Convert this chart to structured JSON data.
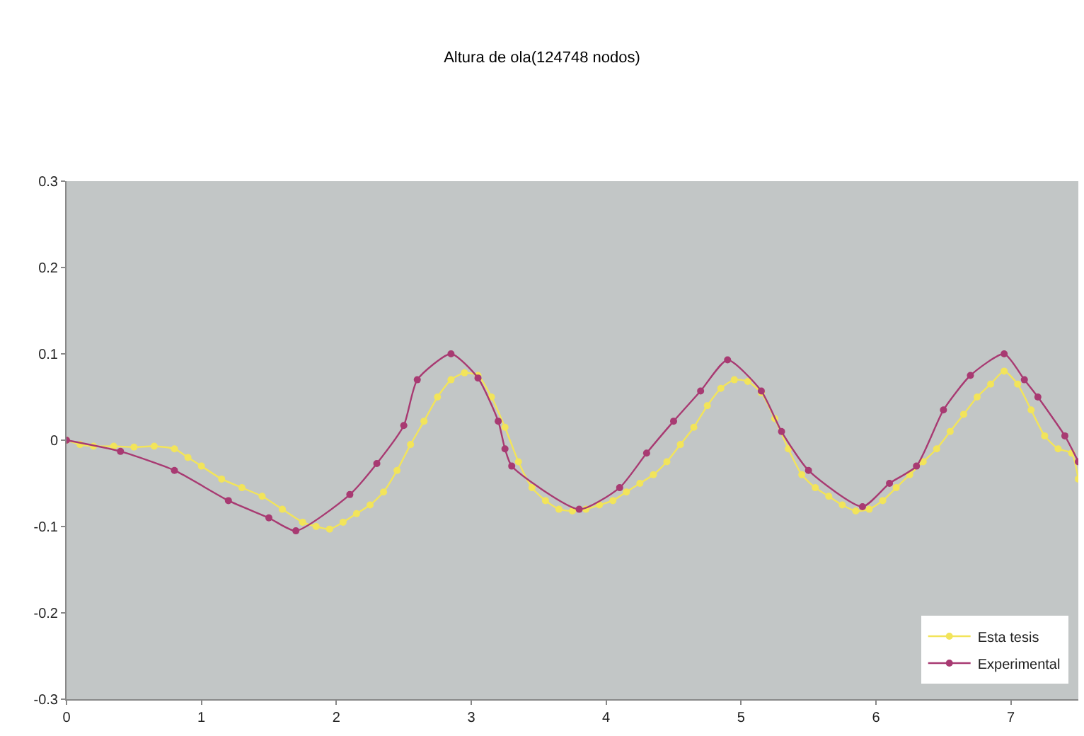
{
  "chart_data": {
    "type": "line",
    "title": "Altura de ola(124748 nodos)",
    "xlim": [
      0,
      7.5
    ],
    "xticks": [
      0,
      1,
      2,
      3,
      4,
      5,
      6,
      7
    ],
    "ylim": [
      -0.3,
      0.3
    ],
    "yticks": [
      -0.3,
      -0.2,
      -0.1,
      0,
      0.1,
      0.2,
      0.3
    ],
    "grid": false,
    "legend": "bottom right",
    "marker": "circle",
    "line_style": "solid",
    "series": [
      {
        "name": "Esta tesis",
        "color": "#f2e45a",
        "x": [
          0,
          0.1,
          0.2,
          0.35,
          0.5,
          0.65,
          0.8,
          0.9,
          1.0,
          1.15,
          1.3,
          1.45,
          1.6,
          1.75,
          1.85,
          1.95,
          2.05,
          2.15,
          2.25,
          2.35,
          2.45,
          2.55,
          2.65,
          2.75,
          2.85,
          2.95,
          3.05,
          3.15,
          3.25,
          3.35,
          3.45,
          3.55,
          3.65,
          3.75,
          3.85,
          3.95,
          4.05,
          4.15,
          4.25,
          4.35,
          4.45,
          4.55,
          4.65,
          4.75,
          4.85,
          4.95,
          5.05,
          5.15,
          5.25,
          5.35,
          5.45,
          5.55,
          5.65,
          5.75,
          5.85,
          5.95,
          6.05,
          6.15,
          6.25,
          6.35,
          6.45,
          6.55,
          6.65,
          6.75,
          6.85,
          6.95,
          7.05,
          7.15,
          7.25,
          7.35,
          7.45,
          7.5
        ],
        "values": [
          0,
          -0.005,
          -0.007,
          -0.007,
          -0.008,
          -0.007,
          -0.01,
          -0.02,
          -0.03,
          -0.045,
          -0.055,
          -0.065,
          -0.08,
          -0.095,
          -0.1,
          -0.103,
          -0.095,
          -0.085,
          -0.075,
          -0.06,
          -0.035,
          -0.005,
          0.022,
          0.05,
          0.07,
          0.078,
          0.075,
          0.05,
          0.015,
          -0.025,
          -0.055,
          -0.07,
          -0.08,
          -0.082,
          -0.08,
          -0.075,
          -0.07,
          -0.06,
          -0.05,
          -0.04,
          -0.025,
          -0.005,
          0.015,
          0.04,
          0.06,
          0.07,
          0.068,
          0.055,
          0.025,
          -0.01,
          -0.04,
          -0.055,
          -0.065,
          -0.075,
          -0.082,
          -0.08,
          -0.07,
          -0.055,
          -0.04,
          -0.025,
          -0.01,
          0.01,
          0.03,
          0.05,
          0.065,
          0.08,
          0.065,
          0.035,
          0.005,
          -0.01,
          -0.015,
          -0.045
        ]
      },
      {
        "name": "Experimental",
        "color": "#a83a72",
        "x": [
          0,
          0.4,
          0.8,
          1.2,
          1.5,
          1.7,
          2.1,
          2.3,
          2.5,
          2.6,
          2.85,
          3.05,
          3.2,
          3.25,
          3.3,
          3.8,
          4.1,
          4.3,
          4.5,
          4.7,
          4.9,
          5.15,
          5.3,
          5.5,
          5.9,
          6.1,
          6.3,
          6.5,
          6.7,
          6.95,
          7.1,
          7.2,
          7.4,
          7.5
        ],
        "values": [
          0,
          -0.013,
          -0.035,
          -0.07,
          -0.09,
          -0.105,
          -0.063,
          -0.027,
          0.017,
          0.07,
          0.1,
          0.072,
          0.022,
          -0.01,
          -0.03,
          -0.08,
          -0.055,
          -0.015,
          0.022,
          0.057,
          0.093,
          0.057,
          0.01,
          -0.035,
          -0.077,
          -0.05,
          -0.03,
          0.035,
          0.075,
          0.1,
          0.07,
          0.05,
          0.005,
          -0.025
        ]
      }
    ]
  }
}
